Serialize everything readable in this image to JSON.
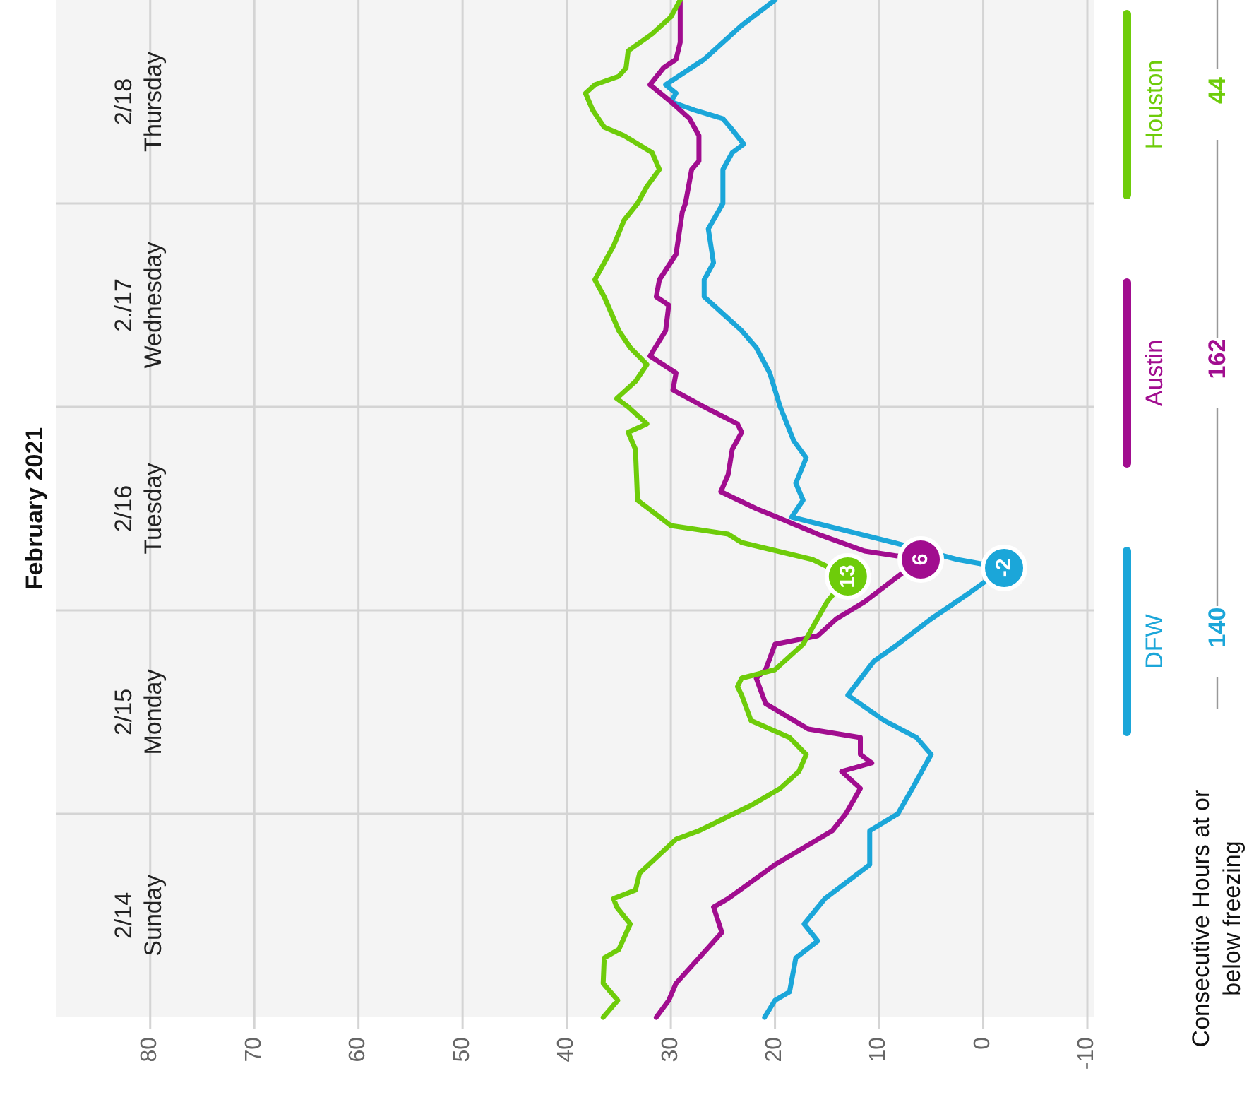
{
  "chart_data": {
    "type": "line",
    "orientation": "horizontal",
    "title": "February 2021",
    "xlim": [
      89,
      -10
    ],
    "ylim": [
      "2021-02-14T00:00",
      "2021-02-19T00:00"
    ],
    "xticks": [
      80,
      70,
      60,
      50,
      40,
      30,
      20,
      10,
      0,
      -10
    ],
    "yticks": [
      {
        "value": "2021-02-14T12:00",
        "label": "2/14\nSunday"
      },
      {
        "value": "2021-02-15T00:00",
        "label": null
      },
      {
        "value": "2021-02-15T12:00",
        "label": "2/15\nMonday"
      },
      {
        "value": "2021-02-16T00:00",
        "label": null
      },
      {
        "value": "2021-02-16T12:00",
        "label": "2/16\nTuesday"
      },
      {
        "value": "2021-02-17T00:00",
        "label": null
      },
      {
        "value": "2021-02-17T12:00",
        "label": "2./17\nWednesday"
      },
      {
        "value": "2021-02-18T00:00",
        "label": null
      },
      {
        "value": "2021-02-18T12:00",
        "label": "2/18\nThursday"
      }
    ],
    "grid": true,
    "legend": "right",
    "line_style": "solid",
    "series": [
      {
        "name": "DFW",
        "color": "#1ba6d9",
        "x": [
          "2021-02-14T00:00",
          "2021-02-14T02:00",
          "2021-02-14T03:00",
          "2021-02-14T07:00",
          "2021-02-14T09:00",
          "2021-02-14T11:00",
          "2021-02-14T14:00",
          "2021-02-14T18:00",
          "2021-02-14T22:00",
          "2021-02-15T00:00",
          "2021-02-15T03:00",
          "2021-02-15T07:00",
          "2021-02-15T09:00",
          "2021-02-15T11:00",
          "2021-02-15T14:00",
          "2021-02-15T18:00",
          "2021-02-15T20:00",
          "2021-02-15T23:00",
          "2021-02-16T02:00",
          "2021-02-16T05:00",
          "2021-02-16T06:00",
          "2021-02-16T08:00",
          "2021-02-16T11:00",
          "2021-02-16T13:00",
          "2021-02-16T15:00",
          "2021-02-16T18:00",
          "2021-02-16T20:00",
          "2021-02-17T00:00",
          "2021-02-17T04:00",
          "2021-02-17T07:00",
          "2021-02-17T09:00",
          "2021-02-17T13:00",
          "2021-02-17T15:00",
          "2021-02-17T17:00",
          "2021-02-17T21:00",
          "2021-02-18T00:00",
          "2021-02-18T04:00",
          "2021-02-18T06:00",
          "2021-02-18T07:00",
          "2021-02-18T09:00",
          "2021-02-18T10:00",
          "2021-02-18T11:00",
          "2021-02-18T12:00",
          "2021-02-18T13:00",
          "2021-02-18T14:00",
          "2021-02-18T17:00",
          "2021-02-18T21:00",
          "2021-02-19T00:00"
        ],
        "values": [
          21,
          20,
          18.6,
          18,
          15.9,
          17.2,
          15.2,
          10.9,
          10.9,
          8.2,
          6.8,
          5,
          6.4,
          9.5,
          13,
          10.5,
          8.2,
          5,
          1.4,
          -2,
          2.5,
          8.6,
          18.4,
          17.3,
          18,
          17,
          18.2,
          19.5,
          20.5,
          21.8,
          23.2,
          26.8,
          26.8,
          25.9,
          26.4,
          25,
          25,
          24.1,
          23,
          24.3,
          25,
          27.7,
          30,
          29.5,
          30.5,
          26.8,
          23.2,
          20
        ]
      },
      {
        "name": "Austin",
        "color": "#a10d8f",
        "x": [
          "2021-02-14T00:00",
          "2021-02-14T02:00",
          "2021-02-14T04:00",
          "2021-02-14T07:00",
          "2021-02-14T10:00",
          "2021-02-14T13:00",
          "2021-02-14T14:00",
          "2021-02-14T18:00",
          "2021-02-14T22:00",
          "2021-02-15T00:00",
          "2021-02-15T03:00",
          "2021-02-15T05:00",
          "2021-02-15T06:00",
          "2021-02-15T07:00",
          "2021-02-15T09:00",
          "2021-02-15T10:00",
          "2021-02-15T13:00",
          "2021-02-15T16:00",
          "2021-02-15T17:00",
          "2021-02-15T20:00",
          "2021-02-15T21:00",
          "2021-02-15T23:00",
          "2021-02-16T01:00",
          "2021-02-16T04:00",
          "2021-02-16T06:00",
          "2021-02-16T07:00",
          "2021-02-16T09:00",
          "2021-02-16T11:00",
          "2021-02-16T12:00",
          "2021-02-16T14:00",
          "2021-02-16T16:00",
          "2021-02-16T19:00",
          "2021-02-16T21:00",
          "2021-02-16T22:00",
          "2021-02-17T00:00",
          "2021-02-17T02:00",
          "2021-02-17T04:00",
          "2021-02-17T06:00",
          "2021-02-17T09:00",
          "2021-02-17T12:00",
          "2021-02-17T13:00",
          "2021-02-17T15:00",
          "2021-02-17T18:00",
          "2021-02-17T23:00",
          "2021-02-18T00:00",
          "2021-02-18T04:00",
          "2021-02-18T05:00",
          "2021-02-18T08:00",
          "2021-02-18T10:00",
          "2021-02-18T12:00",
          "2021-02-18T14:00",
          "2021-02-18T16:00",
          "2021-02-18T17:00",
          "2021-02-18T19:00",
          "2021-02-19T00:00"
        ],
        "values": [
          31.4,
          30.2,
          29.5,
          27.3,
          25.1,
          25.9,
          24.5,
          20,
          14.5,
          13.2,
          11.8,
          13.6,
          10.7,
          11.8,
          11.8,
          16.8,
          20.9,
          21.8,
          20.9,
          20,
          15.9,
          14.1,
          11.4,
          8.2,
          6,
          11.4,
          15.9,
          19.8,
          21.8,
          25.2,
          24.5,
          24.1,
          23.2,
          23.6,
          26.8,
          29.8,
          29.5,
          32,
          30.5,
          30.2,
          31.4,
          31.1,
          29.5,
          28.9,
          28.6,
          28,
          27.3,
          27.3,
          28.2,
          30,
          32,
          30.7,
          29.5,
          29.1,
          29.1
        ]
      },
      {
        "name": "Houston",
        "color": "#6ecc0a",
        "x": [
          "2021-02-14T00:00",
          "2021-02-14T02:00",
          "2021-02-14T04:00",
          "2021-02-14T07:00",
          "2021-02-14T08:00",
          "2021-02-14T11:00",
          "2021-02-14T13:00",
          "2021-02-14T14:00",
          "2021-02-14T15:00",
          "2021-02-14T17:00",
          "2021-02-14T21:00",
          "2021-02-14T22:00",
          "2021-02-15T01:00",
          "2021-02-15T03:00",
          "2021-02-15T05:00",
          "2021-02-15T07:00",
          "2021-02-15T09:00",
          "2021-02-15T11:00",
          "2021-02-15T14:00",
          "2021-02-15T15:00",
          "2021-02-15T16:00",
          "2021-02-15T17:00",
          "2021-02-15T20:00",
          "2021-02-16T01:00",
          "2021-02-16T04:00",
          "2021-02-16T06:00",
          "2021-02-16T08:00",
          "2021-02-16T09:00",
          "2021-02-16T10:00",
          "2021-02-16T13:00",
          "2021-02-16T19:00",
          "2021-02-16T21:00",
          "2021-02-16T22:00",
          "2021-02-17T00:00",
          "2021-02-17T01:00",
          "2021-02-17T03:00",
          "2021-02-17T05:00",
          "2021-02-17T07:00",
          "2021-02-17T09:00",
          "2021-02-17T13:00",
          "2021-02-17T15:00",
          "2021-02-17T17:00",
          "2021-02-17T19:00",
          "2021-02-17T22:00",
          "2021-02-18T00:00",
          "2021-02-18T02:00",
          "2021-02-18T04:00",
          "2021-02-18T06:00",
          "2021-02-18T08:00",
          "2021-02-18T09:00",
          "2021-02-18T11:00",
          "2021-02-18T13:00",
          "2021-02-18T14:00",
          "2021-02-18T15:00",
          "2021-02-18T16:00",
          "2021-02-18T18:00",
          "2021-02-18T20:00",
          "2021-02-18T22:00",
          "2021-02-19T00:00"
        ],
        "values": [
          36.5,
          35.1,
          36.5,
          36.4,
          35,
          33.9,
          35.2,
          35.5,
          33.4,
          33,
          29.5,
          27.3,
          22.3,
          19.5,
          17.7,
          17,
          18.6,
          22.3,
          23.2,
          23.6,
          23.2,
          20,
          17.3,
          15,
          13,
          16.4,
          23.2,
          24.5,
          30,
          33.2,
          33.4,
          34.1,
          32.3,
          34.1,
          35.2,
          33.4,
          32.3,
          33.9,
          35,
          36.4,
          37.3,
          36.4,
          35.5,
          34.5,
          33.2,
          32.3,
          31.1,
          31.8,
          34.5,
          36.4,
          37.5,
          38.2,
          37.3,
          35,
          34.3,
          34.1,
          31.8,
          30,
          29.1
        ]
      }
    ],
    "annotations": [
      {
        "text": "-2",
        "x": -2,
        "y": "2021-02-16T05:00"
      },
      {
        "text": "6",
        "x": 6,
        "y": "2021-02-16T06:00"
      },
      {
        "text": "13",
        "x": 13,
        "y": "2021-02-16T04:00"
      },
      "140",
      "162",
      "44",
      "Consecutive Hours at or\nbelow freezing"
    ]
  }
}
